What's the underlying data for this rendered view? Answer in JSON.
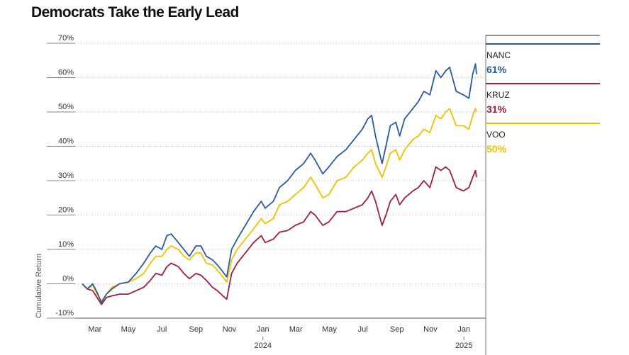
{
  "chart_data": {
    "type": "line",
    "title": "Democrats Take the Early Lead",
    "ylabel": "Cumulative Return",
    "y_unit": "%",
    "ylim": [
      -10,
      70
    ],
    "yticks": [
      -10,
      0,
      10,
      20,
      30,
      40,
      50,
      60,
      70
    ],
    "ytick_labels": [
      "-10%",
      "0%",
      "10%",
      "20%",
      "30%",
      "40%",
      "50%",
      "60%",
      "70%"
    ],
    "xlim": [
      "2023-02-06",
      "2025-01-24"
    ],
    "xticks": [
      {
        "date": "2023-03-01",
        "label": "Mar"
      },
      {
        "date": "2023-05-01",
        "label": "May"
      },
      {
        "date": "2023-07-01",
        "label": "Jul"
      },
      {
        "date": "2023-09-01",
        "label": "Sep"
      },
      {
        "date": "2023-11-01",
        "label": "Nov"
      },
      {
        "date": "2024-01-01",
        "label": "Jan"
      },
      {
        "date": "2024-03-01",
        "label": "Mar"
      },
      {
        "date": "2024-05-01",
        "label": "May"
      },
      {
        "date": "2024-07-01",
        "label": "Jul"
      },
      {
        "date": "2024-09-01",
        "label": "Sep"
      },
      {
        "date": "2024-11-01",
        "label": "Nov"
      },
      {
        "date": "2025-01-01",
        "label": "Jan"
      }
    ],
    "year_labels": [
      {
        "date": "2024-01-01",
        "label": "2024"
      },
      {
        "date": "2025-01-01",
        "label": "2025"
      }
    ],
    "grid": "horizontal dotted",
    "legend_position": "right",
    "series": [
      {
        "name": "NANC",
        "value_label": "61%",
        "color": "#2b5aa8",
        "points": [
          [
            "2023-02-06",
            0
          ],
          [
            "2023-02-15",
            -1.5
          ],
          [
            "2023-02-25",
            0
          ],
          [
            "2023-03-05",
            -2.5
          ],
          [
            "2023-03-13",
            -5.5
          ],
          [
            "2023-03-22",
            -3
          ],
          [
            "2023-04-01",
            -1.5
          ],
          [
            "2023-04-15",
            0
          ],
          [
            "2023-05-01",
            0.5
          ],
          [
            "2023-05-15",
            3
          ],
          [
            "2023-05-29",
            6
          ],
          [
            "2023-06-10",
            9
          ],
          [
            "2023-06-20",
            11
          ],
          [
            "2023-07-01",
            10
          ],
          [
            "2023-07-10",
            14
          ],
          [
            "2023-07-18",
            14.5
          ],
          [
            "2023-07-31",
            12
          ],
          [
            "2023-08-10",
            10
          ],
          [
            "2023-08-20",
            8
          ],
          [
            "2023-09-01",
            11
          ],
          [
            "2023-09-10",
            11
          ],
          [
            "2023-09-20",
            8
          ],
          [
            "2023-10-01",
            7
          ],
          [
            "2023-10-10",
            5.5
          ],
          [
            "2023-10-20",
            3.5
          ],
          [
            "2023-10-27",
            2
          ],
          [
            "2023-11-05",
            10
          ],
          [
            "2023-11-15",
            13
          ],
          [
            "2023-11-30",
            17
          ],
          [
            "2023-12-15",
            21
          ],
          [
            "2023-12-29",
            24
          ],
          [
            "2024-01-05",
            22
          ],
          [
            "2024-01-20",
            24
          ],
          [
            "2024-01-31",
            28
          ],
          [
            "2024-02-15",
            30
          ],
          [
            "2024-02-29",
            33
          ],
          [
            "2024-03-15",
            35
          ],
          [
            "2024-03-28",
            38
          ],
          [
            "2024-04-05",
            36
          ],
          [
            "2024-04-19",
            32
          ],
          [
            "2024-04-30",
            34
          ],
          [
            "2024-05-15",
            37
          ],
          [
            "2024-05-31",
            39
          ],
          [
            "2024-06-15",
            42
          ],
          [
            "2024-06-30",
            45
          ],
          [
            "2024-07-10",
            48
          ],
          [
            "2024-07-17",
            49
          ],
          [
            "2024-07-24",
            43
          ],
          [
            "2024-08-05",
            35
          ],
          [
            "2024-08-12",
            40
          ],
          [
            "2024-08-20",
            46
          ],
          [
            "2024-08-30",
            47
          ],
          [
            "2024-09-06",
            43
          ],
          [
            "2024-09-15",
            48
          ],
          [
            "2024-09-30",
            51
          ],
          [
            "2024-10-10",
            53
          ],
          [
            "2024-10-20",
            56
          ],
          [
            "2024-10-31",
            55
          ],
          [
            "2024-11-11",
            62
          ],
          [
            "2024-11-20",
            60
          ],
          [
            "2024-11-29",
            62
          ],
          [
            "2024-12-06",
            63
          ],
          [
            "2024-12-18",
            56
          ],
          [
            "2024-12-31",
            55
          ],
          [
            "2025-01-10",
            54
          ],
          [
            "2025-01-17",
            61
          ],
          [
            "2025-01-22",
            64
          ],
          [
            "2025-01-24",
            61
          ]
        ]
      },
      {
        "name": "KRUZ",
        "value_label": "31%",
        "color": "#a51d42",
        "points": [
          [
            "2023-02-06",
            0
          ],
          [
            "2023-02-15",
            -1.5
          ],
          [
            "2023-02-25",
            -2
          ],
          [
            "2023-03-05",
            -4
          ],
          [
            "2023-03-13",
            -6
          ],
          [
            "2023-03-22",
            -4
          ],
          [
            "2023-04-01",
            -3.5
          ],
          [
            "2023-04-15",
            -3
          ],
          [
            "2023-05-01",
            -3
          ],
          [
            "2023-05-15",
            -2
          ],
          [
            "2023-05-29",
            -1
          ],
          [
            "2023-06-10",
            1
          ],
          [
            "2023-06-20",
            3
          ],
          [
            "2023-07-01",
            2.5
          ],
          [
            "2023-07-10",
            5
          ],
          [
            "2023-07-18",
            6
          ],
          [
            "2023-07-31",
            5
          ],
          [
            "2023-08-10",
            3
          ],
          [
            "2023-08-20",
            1.5
          ],
          [
            "2023-09-01",
            3
          ],
          [
            "2023-09-10",
            2.5
          ],
          [
            "2023-09-20",
            1
          ],
          [
            "2023-10-01",
            -1
          ],
          [
            "2023-10-10",
            -2
          ],
          [
            "2023-10-20",
            -3.5
          ],
          [
            "2023-10-27",
            -4.5
          ],
          [
            "2023-11-05",
            3
          ],
          [
            "2023-11-15",
            6
          ],
          [
            "2023-11-30",
            9
          ],
          [
            "2023-12-15",
            12
          ],
          [
            "2023-12-29",
            14
          ],
          [
            "2024-01-05",
            12
          ],
          [
            "2024-01-20",
            13
          ],
          [
            "2024-01-31",
            15
          ],
          [
            "2024-02-15",
            15.5
          ],
          [
            "2024-02-29",
            17
          ],
          [
            "2024-03-15",
            18
          ],
          [
            "2024-03-28",
            21
          ],
          [
            "2024-04-05",
            20
          ],
          [
            "2024-04-19",
            17
          ],
          [
            "2024-04-30",
            18
          ],
          [
            "2024-05-15",
            21
          ],
          [
            "2024-05-31",
            21
          ],
          [
            "2024-06-15",
            22
          ],
          [
            "2024-06-30",
            23
          ],
          [
            "2024-07-10",
            25
          ],
          [
            "2024-07-17",
            27
          ],
          [
            "2024-07-24",
            24
          ],
          [
            "2024-08-05",
            17
          ],
          [
            "2024-08-12",
            20
          ],
          [
            "2024-08-20",
            24
          ],
          [
            "2024-08-30",
            26
          ],
          [
            "2024-09-06",
            23
          ],
          [
            "2024-09-15",
            25
          ],
          [
            "2024-09-30",
            27
          ],
          [
            "2024-10-10",
            28
          ],
          [
            "2024-10-20",
            30
          ],
          [
            "2024-10-31",
            28
          ],
          [
            "2024-11-11",
            34
          ],
          [
            "2024-11-20",
            33
          ],
          [
            "2024-11-29",
            34
          ],
          [
            "2024-12-06",
            33
          ],
          [
            "2024-12-18",
            28
          ],
          [
            "2024-12-31",
            27
          ],
          [
            "2025-01-10",
            28
          ],
          [
            "2025-01-17",
            31
          ],
          [
            "2025-01-22",
            33
          ],
          [
            "2025-01-24",
            31
          ]
        ]
      },
      {
        "name": "VOO",
        "value_label": "50%",
        "color": "#f2c200",
        "points": [
          [
            "2023-02-06",
            0
          ],
          [
            "2023-02-15",
            -1.5
          ],
          [
            "2023-02-25",
            -0.5
          ],
          [
            "2023-03-05",
            -3
          ],
          [
            "2023-03-13",
            -5
          ],
          [
            "2023-03-22",
            -3
          ],
          [
            "2023-04-01",
            -1
          ],
          [
            "2023-04-15",
            0
          ],
          [
            "2023-05-01",
            0.5
          ],
          [
            "2023-05-15",
            1.5
          ],
          [
            "2023-05-29",
            3
          ],
          [
            "2023-06-10",
            6
          ],
          [
            "2023-06-20",
            8
          ],
          [
            "2023-07-01",
            8
          ],
          [
            "2023-07-10",
            10
          ],
          [
            "2023-07-18",
            11
          ],
          [
            "2023-07-31",
            10
          ],
          [
            "2023-08-10",
            8
          ],
          [
            "2023-08-20",
            7
          ],
          [
            "2023-09-01",
            9
          ],
          [
            "2023-09-10",
            9
          ],
          [
            "2023-09-20",
            6
          ],
          [
            "2023-10-01",
            5.5
          ],
          [
            "2023-10-10",
            4
          ],
          [
            "2023-10-20",
            2
          ],
          [
            "2023-10-27",
            0.5
          ],
          [
            "2023-11-05",
            7
          ],
          [
            "2023-11-15",
            10
          ],
          [
            "2023-11-30",
            13
          ],
          [
            "2023-12-15",
            16
          ],
          [
            "2023-12-29",
            19
          ],
          [
            "2024-01-05",
            17.5
          ],
          [
            "2024-01-20",
            19
          ],
          [
            "2024-01-31",
            23
          ],
          [
            "2024-02-15",
            24
          ],
          [
            "2024-02-29",
            26
          ],
          [
            "2024-03-15",
            28
          ],
          [
            "2024-03-28",
            31
          ],
          [
            "2024-04-05",
            29
          ],
          [
            "2024-04-19",
            25
          ],
          [
            "2024-04-30",
            26
          ],
          [
            "2024-05-15",
            30
          ],
          [
            "2024-05-31",
            31
          ],
          [
            "2024-06-15",
            34
          ],
          [
            "2024-06-30",
            36
          ],
          [
            "2024-07-10",
            38
          ],
          [
            "2024-07-17",
            39
          ],
          [
            "2024-07-24",
            35
          ],
          [
            "2024-08-05",
            31
          ],
          [
            "2024-08-12",
            34
          ],
          [
            "2024-08-20",
            38
          ],
          [
            "2024-08-30",
            39
          ],
          [
            "2024-09-06",
            36
          ],
          [
            "2024-09-15",
            39
          ],
          [
            "2024-09-30",
            42
          ],
          [
            "2024-10-10",
            43
          ],
          [
            "2024-10-20",
            45
          ],
          [
            "2024-10-31",
            44
          ],
          [
            "2024-11-11",
            49
          ],
          [
            "2024-11-20",
            48
          ],
          [
            "2024-11-29",
            50
          ],
          [
            "2024-12-06",
            51
          ],
          [
            "2024-12-18",
            46
          ],
          [
            "2024-12-31",
            46
          ],
          [
            "2025-01-10",
            45
          ],
          [
            "2025-01-17",
            49
          ],
          [
            "2025-01-22",
            51
          ],
          [
            "2025-01-24",
            50
          ]
        ]
      }
    ]
  }
}
